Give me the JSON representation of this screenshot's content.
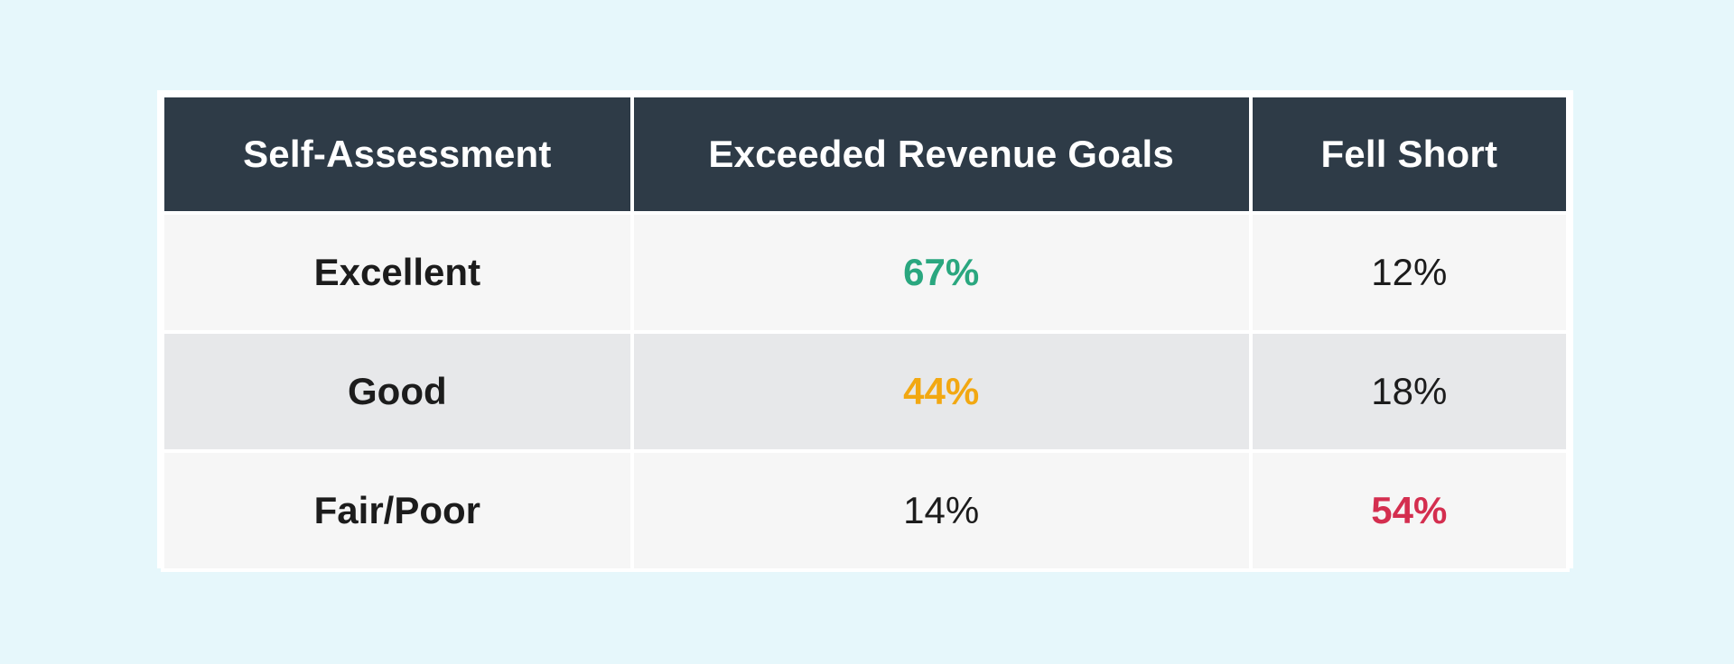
{
  "chart_data": {
    "type": "table",
    "title": "",
    "columns": [
      "Self-Assessment",
      "Exceeded Revenue Goals",
      "Fell Short"
    ],
    "rows": [
      {
        "label": "Excellent",
        "exceeded": "67%",
        "fell_short": "12%"
      },
      {
        "label": "Good",
        "exceeded": "44%",
        "fell_short": "18%"
      },
      {
        "label": "Fair/Poor",
        "exceeded": "14%",
        "fell_short": "54%"
      }
    ],
    "values": {
      "exceeded_revenue_goals": [
        67,
        44,
        14
      ],
      "fell_short": [
        12,
        18,
        54
      ]
    },
    "unit": "%"
  },
  "colors": {
    "header_bg": "#2e3b47",
    "highlight_green": "#2aa77f",
    "highlight_orange": "#f2a812",
    "highlight_red": "#d42e4f",
    "page_bg": "#e6f7fb"
  },
  "highlights": {
    "Excellent": {
      "exceeded": "#2aa77f"
    },
    "Good": {
      "exceeded": "#f2a812"
    },
    "Fair/Poor": {
      "fell_short": "#d42e4f"
    }
  }
}
